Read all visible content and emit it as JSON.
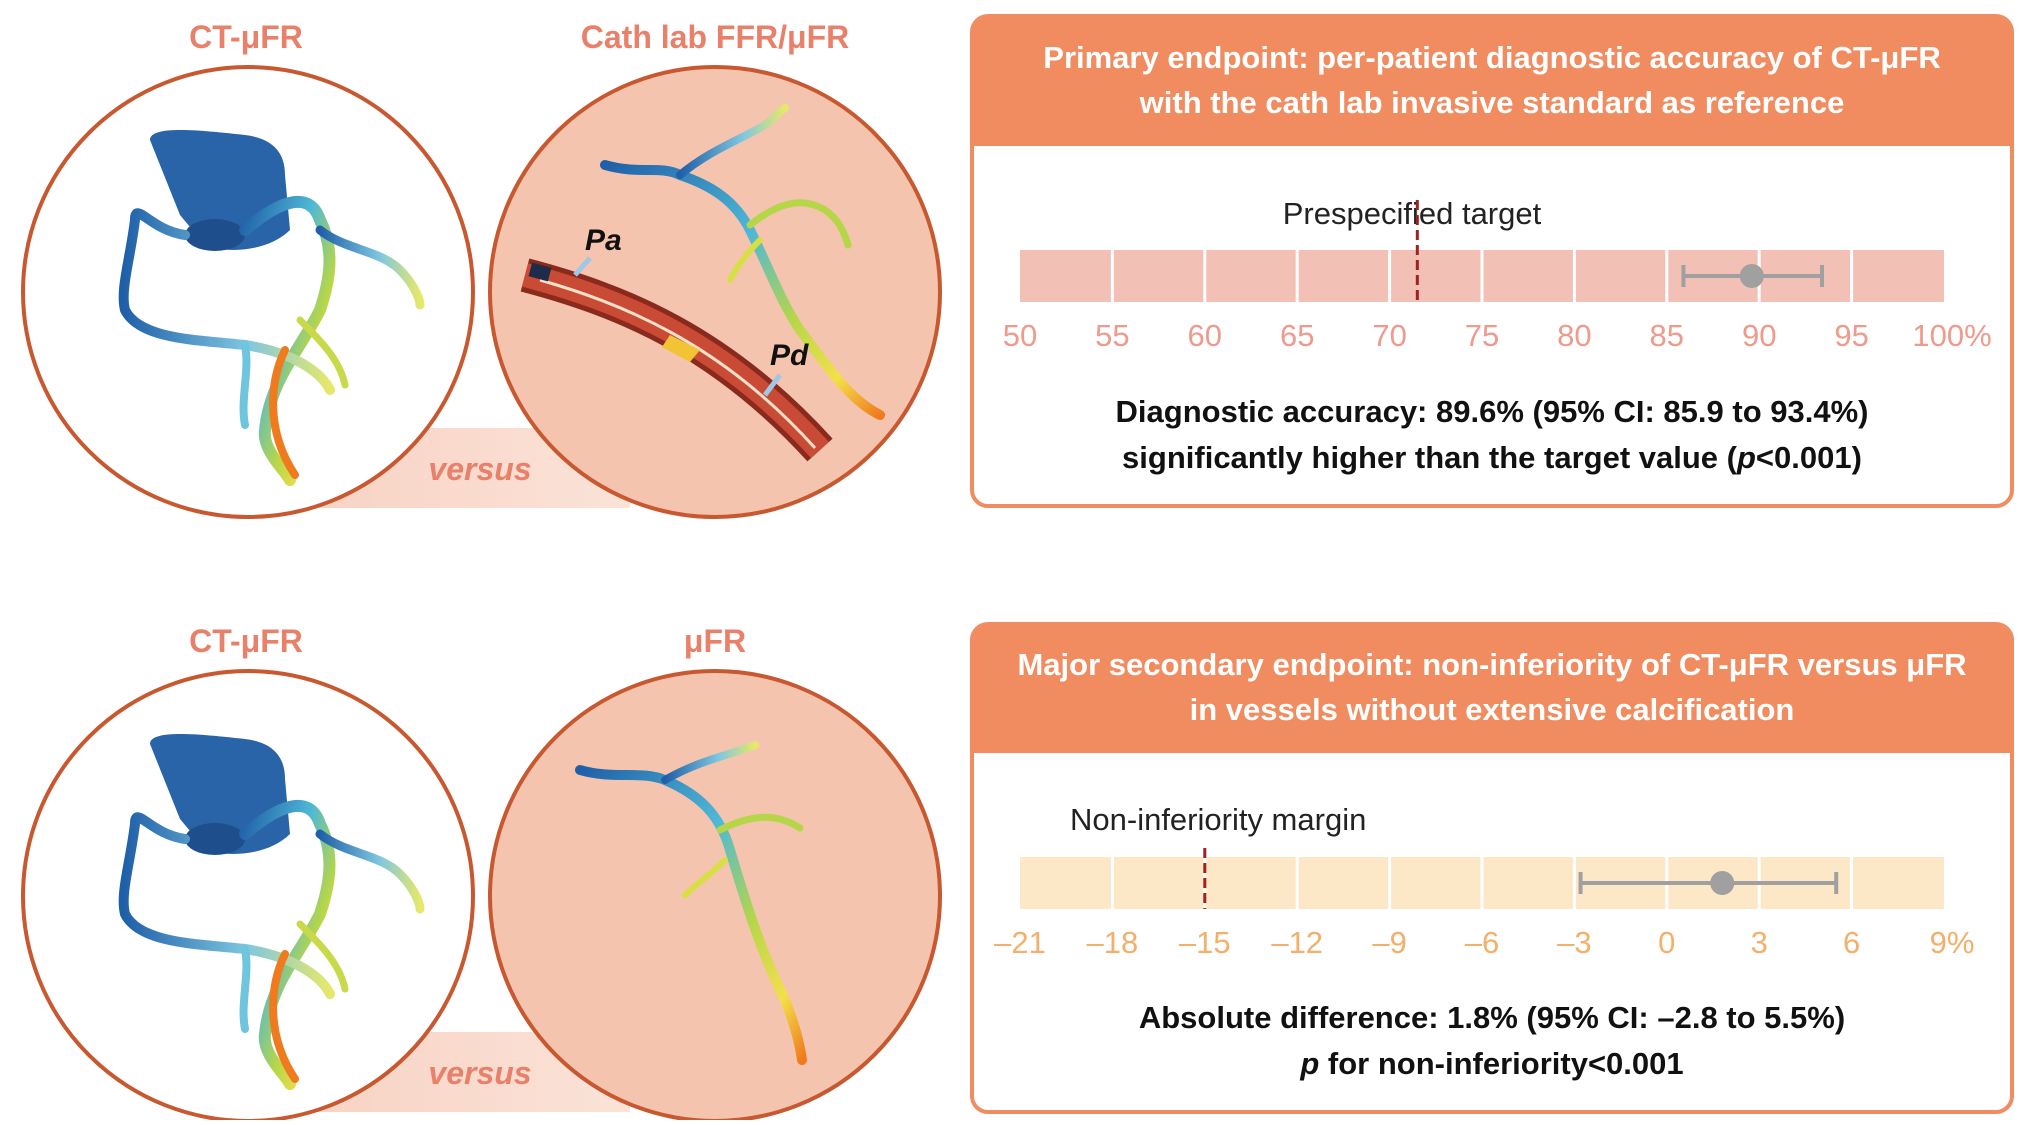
{
  "top_row": {
    "left_caption": "CT-μFR",
    "right_caption": "Cath lab FFR/μFR",
    "versus": "versus",
    "label_pa": "Pa",
    "label_pd": "Pd"
  },
  "bottom_row": {
    "left_caption": "CT-μFR",
    "right_caption": "μFR",
    "versus": "versus"
  },
  "primary_panel": {
    "title_line1": "Primary endpoint: per-patient diagnostic accuracy of CT-μFR",
    "title_line2": "with the cath lab invasive standard as reference",
    "annotation": "Prespecified target",
    "ticks": [
      "50",
      "55",
      "60",
      "65",
      "70",
      "75",
      "80",
      "85",
      "90",
      "95",
      "100%"
    ],
    "result_line1": "Diagnostic accuracy: 89.6% (95% CI: 85.9 to 93.4%)",
    "result_line2_prefix": "significantly higher than the target value (",
    "result_line2_p": "p",
    "result_line2_suffix": "<0.001)"
  },
  "secondary_panel": {
    "title_line1": "Major secondary endpoint: non-inferiority of CT-μFR versus μFR",
    "title_line2": "in vessels without extensive calcification",
    "annotation": "Non-inferiority margin",
    "ticks": [
      "–21",
      "–18",
      "–15",
      "–12",
      "–9",
      "–6",
      "–3",
      "0",
      "3",
      "6",
      "9%"
    ],
    "result_line1": "Absolute difference: 1.8% (95% CI: –2.8 to 5.5%)",
    "result_line2_p": "p",
    "result_line2_suffix": " for non-inferiority<0.001"
  },
  "colors": {
    "orange": "#f08c5f",
    "circle_border": "#c8582f",
    "circle_fill": "#f5c4ae",
    "red_band": "#f3c0b6",
    "yellow_band": "#fce7c6",
    "target_line": "#a32020",
    "ci_gray": "#a0a0a0"
  },
  "chart_data": [
    {
      "type": "forest",
      "title": "Primary endpoint: per-patient diagnostic accuracy of CT-μFR",
      "axis_range": [
        50,
        100
      ],
      "ticks": [
        50,
        55,
        60,
        65,
        70,
        75,
        80,
        85,
        90,
        95,
        100
      ],
      "unit": "%",
      "reference_line": 71.5,
      "reference_label": "Prespecified target",
      "point": 89.6,
      "ci_low": 85.9,
      "ci_high": 93.4
    },
    {
      "type": "forest",
      "title": "Major secondary endpoint: non-inferiority of CT-μFR versus μFR",
      "axis_range": [
        -21,
        9
      ],
      "ticks": [
        -21,
        -18,
        -15,
        -12,
        -9,
        -6,
        -3,
        0,
        3,
        6,
        9
      ],
      "unit": "%",
      "reference_line": -15,
      "reference_label": "Non-inferiority margin",
      "point": 1.8,
      "ci_low": -2.8,
      "ci_high": 5.5
    }
  ]
}
